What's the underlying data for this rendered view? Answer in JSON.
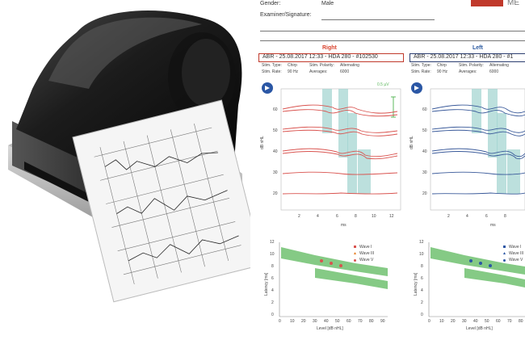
{
  "header": {
    "gender_label": "Gender:",
    "gender_value": "Male",
    "examiner_label": "Examiner/Signature:",
    "logo_fragment": "ME"
  },
  "right": {
    "title": "Right",
    "test": "ABR - 25.08.2017 12:33 - HDA 280 - #102530",
    "stim_type_label": "Stim. Type:",
    "stim_type_value": "Chirp",
    "stim_pol_label": "Stim. Polarity:",
    "stim_pol_value": "Alternating",
    "stim_rate_label": "Stim. Rate:",
    "stim_rate_value": "90 Hz",
    "averages_label": "Averages:",
    "averages_value": "6000",
    "scale_label": "0.5 µV"
  },
  "left": {
    "title": "Left",
    "test": "ABR - 25.08.2017 12:33 - HDA 280 - #1",
    "stim_type_label": "Stim. Type:",
    "stim_type_value": "Chirp",
    "stim_pol_label": "Stim. Polarity:",
    "stim_pol_value": "Alternating",
    "stim_rate_label": "Stim. Rate:",
    "stim_rate_value": "90 Hz",
    "averages_label": "Averages:",
    "averages_value": "6000"
  },
  "waveform_axis": {
    "ylabel": "dB nHL",
    "xlabel": "ms",
    "y_ticks": [
      "60",
      "50",
      "40",
      "30",
      "20"
    ],
    "x_ticks": [
      "2",
      "4",
      "6",
      "8",
      "10",
      "12"
    ]
  },
  "latency_axis": {
    "ylabel": "Latency [ms]",
    "xlabel": "Level [dB nHL]",
    "y_ticks": [
      "12",
      "10",
      "8",
      "6",
      "4",
      "2",
      "0"
    ],
    "x_ticks": [
      "0",
      "10",
      "20",
      "30",
      "40",
      "50",
      "60",
      "70",
      "80",
      "90"
    ],
    "legend_right": [
      "Wave I",
      "Wave III",
      "Wave V"
    ],
    "legend_left": [
      "Wave I",
      "Wave III",
      "Wave V"
    ]
  },
  "colors": {
    "right_wave": "#d9534f",
    "left_wave": "#3a5a9a",
    "band": "#9fd3cf",
    "norm": "#5cb85c"
  },
  "device": {
    "icon": "printer-icon"
  }
}
